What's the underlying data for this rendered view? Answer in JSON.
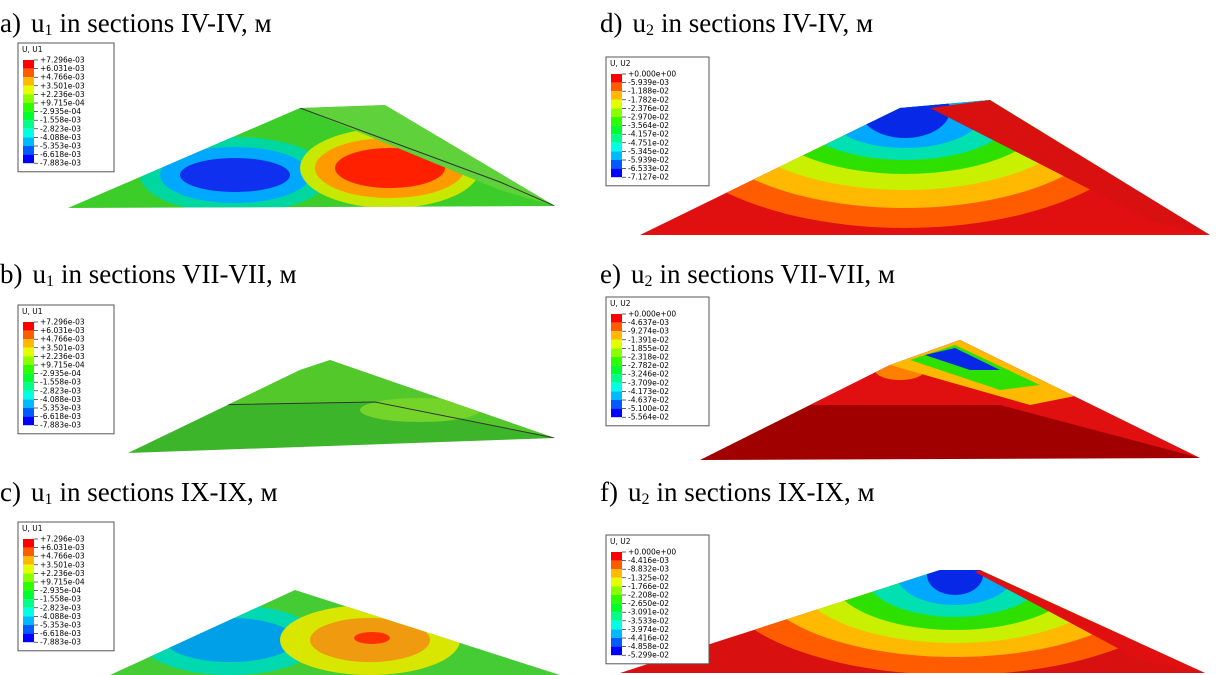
{
  "legend_colors": [
    "#ff0000",
    "#ff5c00",
    "#ffb900",
    "#e3ff00",
    "#8aff00",
    "#2eff00",
    "#00ff2e",
    "#00ff8a",
    "#00ffe3",
    "#00b9ff",
    "#005cff",
    "#0000ff"
  ],
  "panels": [
    {
      "label": "a)",
      "var": "u",
      "sub": "1",
      "text": "in sections IV-IV, м",
      "legend": {
        "title": "U, U1",
        "values": [
          "+7.296e-03",
          "+6.031e-03",
          "+4.766e-03",
          "+3.501e-03",
          "+2.236e-03",
          "+9.715e-04",
          "-2.935e-04",
          "-1.558e-03",
          "-2.823e-03",
          "-4.088e-03",
          "-5.353e-03",
          "-6.618e-03",
          "-7.883e-03"
        ]
      }
    },
    {
      "label": "b)",
      "var": "u",
      "sub": "1",
      "text": "in sections VII-VII, м",
      "legend": {
        "title": "U, U1",
        "values": [
          "+7.296e-03",
          "+6.031e-03",
          "+4.766e-03",
          "+3.501e-03",
          "+2.236e-03",
          "+9.715e-04",
          "-2.935e-04",
          "-1.558e-03",
          "-2.823e-03",
          "-4.088e-03",
          "-5.353e-03",
          "-6.618e-03",
          "-7.883e-03"
        ]
      }
    },
    {
      "label": "c)",
      "var": "u",
      "sub": "1",
      "text": "in sections IX-IX, м",
      "legend": {
        "title": "U, U1",
        "values": [
          "+7.296e-03",
          "+6.031e-03",
          "+4.766e-03",
          "+3.501e-03",
          "+2.236e-03",
          "+9.715e-04",
          "-2.935e-04",
          "-1.558e-03",
          "-2.823e-03",
          "-4.088e-03",
          "-5.353e-03",
          "-6.618e-03",
          "-7.883e-03"
        ]
      }
    },
    {
      "label": "d)",
      "var": "u",
      "sub": "2",
      "text": "in sections IV-IV, м",
      "legend": {
        "title": "U, U2",
        "values": [
          "+0.000e+00",
          "-5.939e-03",
          "-1.188e-02",
          "-1.782e-02",
          "-2.376e-02",
          "-2.970e-02",
          "-3.564e-02",
          "-4.157e-02",
          "-4.751e-02",
          "-5.345e-02",
          "-5.939e-02",
          "-6.533e-02",
          "-7.127e-02"
        ]
      }
    },
    {
      "label": "e)",
      "var": "u",
      "sub": "2",
      "text": "in sections VII-VII, м",
      "legend": {
        "title": "U, U2",
        "values": [
          "+0.000e+00",
          "-4.637e-03",
          "-9.274e-03",
          "-1.391e-02",
          "-1.855e-02",
          "-2.318e-02",
          "-2.782e-02",
          "-3.246e-02",
          "-3.709e-02",
          "-4.173e-02",
          "-4.637e-02",
          "-5.100e-02",
          "-5.564e-02"
        ]
      }
    },
    {
      "label": "f)",
      "var": "u",
      "sub": "2",
      "text": "in sections IX-IX, м",
      "legend": {
        "title": "U, U2",
        "values": [
          "+0.000e+00",
          "-4.416e-03",
          "-8.832e-03",
          "-1.325e-02",
          "-1.766e-02",
          "-2.208e-02",
          "-2.650e-02",
          "-3.091e-02",
          "-3.533e-02",
          "-3.974e-02",
          "-4.416e-02",
          "-4.858e-02",
          "-5.299e-02"
        ]
      }
    }
  ]
}
